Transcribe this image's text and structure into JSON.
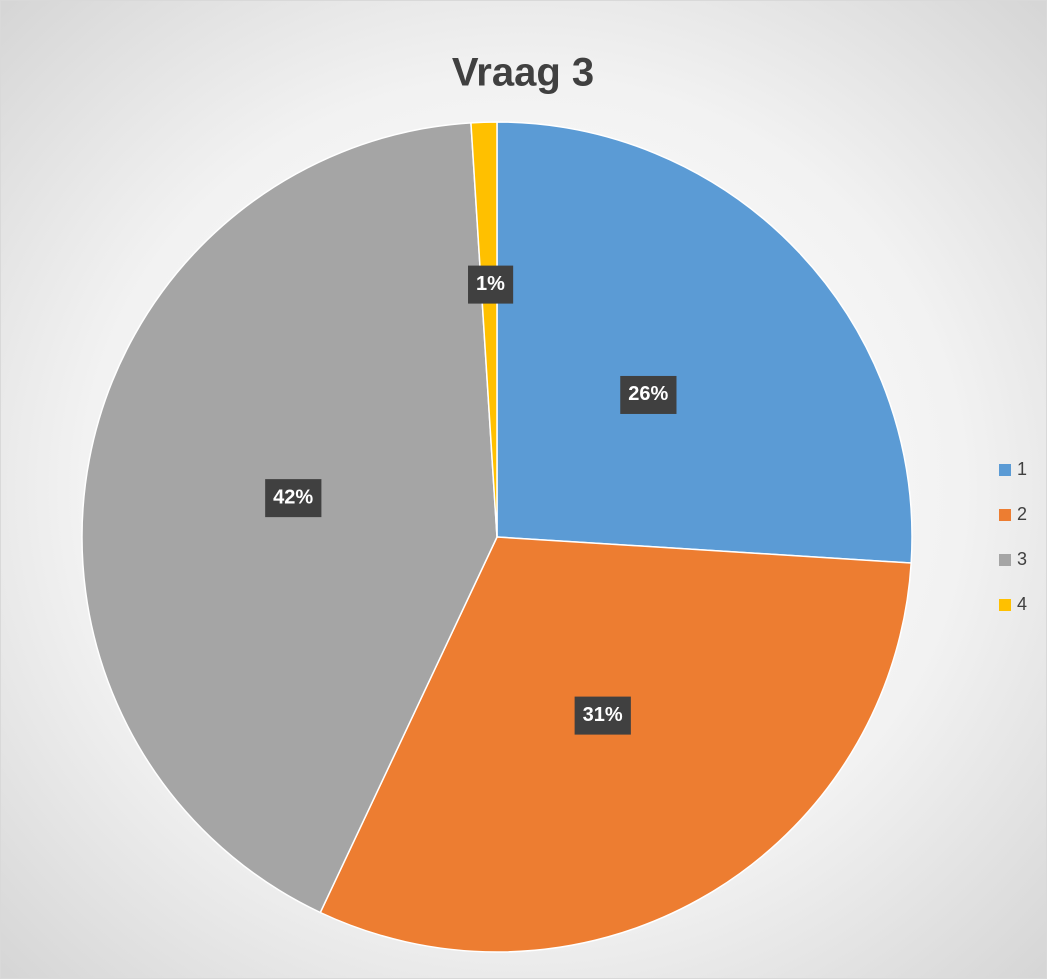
{
  "chart_data": {
    "type": "pie",
    "title": "Vraag 3",
    "categories": [
      "1",
      "2",
      "3",
      "4"
    ],
    "values": [
      26,
      31,
      42,
      1
    ],
    "value_labels": [
      "26%",
      "31%",
      "42%",
      "1%"
    ],
    "colors": [
      "#5b9bd5",
      "#ed7d31",
      "#a5a5a5",
      "#ffc000"
    ],
    "legend": "right"
  }
}
